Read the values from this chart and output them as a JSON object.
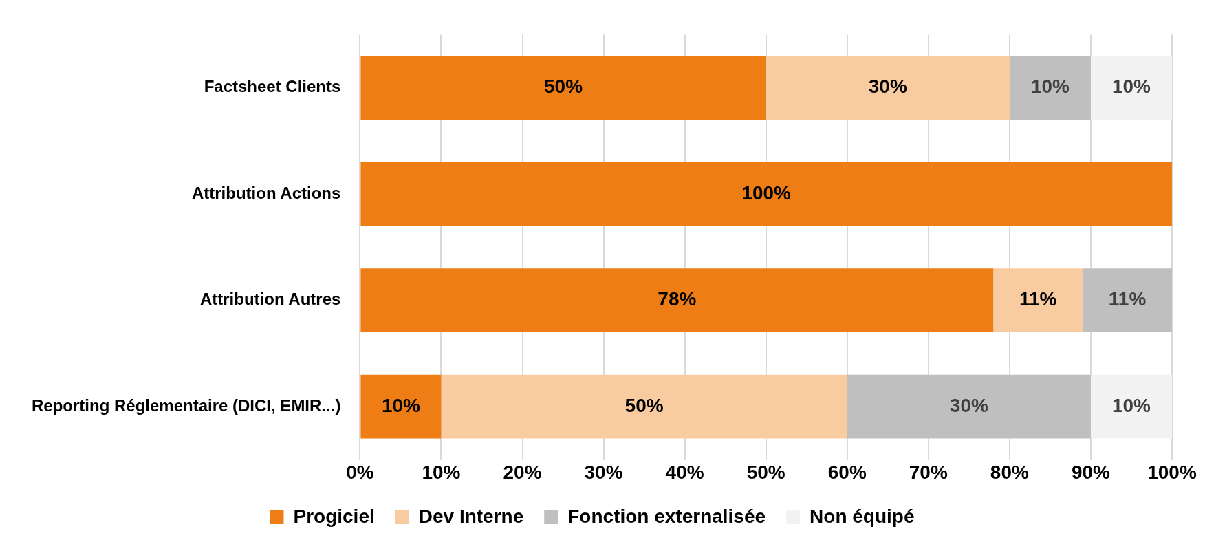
{
  "chart_data": {
    "type": "bar",
    "orientation": "horizontal",
    "stacked": true,
    "categories": [
      "Factsheet Clients",
      "Attribution Actions",
      "Attribution Autres",
      "Reporting Réglementaire (DICI, EMIR...)"
    ],
    "series": [
      {
        "name": "Progiciel",
        "color": "#ed7d14",
        "values": [
          50,
          100,
          78,
          10
        ],
        "value_labels": [
          "50%",
          "100%",
          "78%",
          "10%"
        ]
      },
      {
        "name": "Dev Interne",
        "color": "#f8cba0",
        "values": [
          30,
          null,
          11,
          50
        ],
        "value_labels": [
          "30%",
          null,
          "11%",
          "50%"
        ]
      },
      {
        "name": "Fonction externalisée",
        "color": "#bfbfbf",
        "values": [
          10,
          null,
          11,
          30
        ],
        "value_labels": [
          "10%",
          null,
          "11%",
          "30%"
        ]
      },
      {
        "name": "Non équipé",
        "color": "#f2f2f2",
        "values": [
          10,
          null,
          null,
          10
        ],
        "value_labels": [
          "10%",
          null,
          null,
          "10%"
        ]
      }
    ],
    "xlim": [
      0,
      100
    ],
    "xticks": [
      {
        "value": 0,
        "label": "0%"
      },
      {
        "value": 10,
        "label": "10%"
      },
      {
        "value": 20,
        "label": "20%"
      },
      {
        "value": 30,
        "label": "30%"
      },
      {
        "value": 40,
        "label": "40%"
      },
      {
        "value": 50,
        "label": "50%"
      },
      {
        "value": 60,
        "label": "60%"
      },
      {
        "value": 70,
        "label": "70%"
      },
      {
        "value": 80,
        "label": "80%"
      },
      {
        "value": 90,
        "label": "90%"
      },
      {
        "value": 100,
        "label": "100%"
      }
    ],
    "grid": "x",
    "legend": "bottom"
  }
}
